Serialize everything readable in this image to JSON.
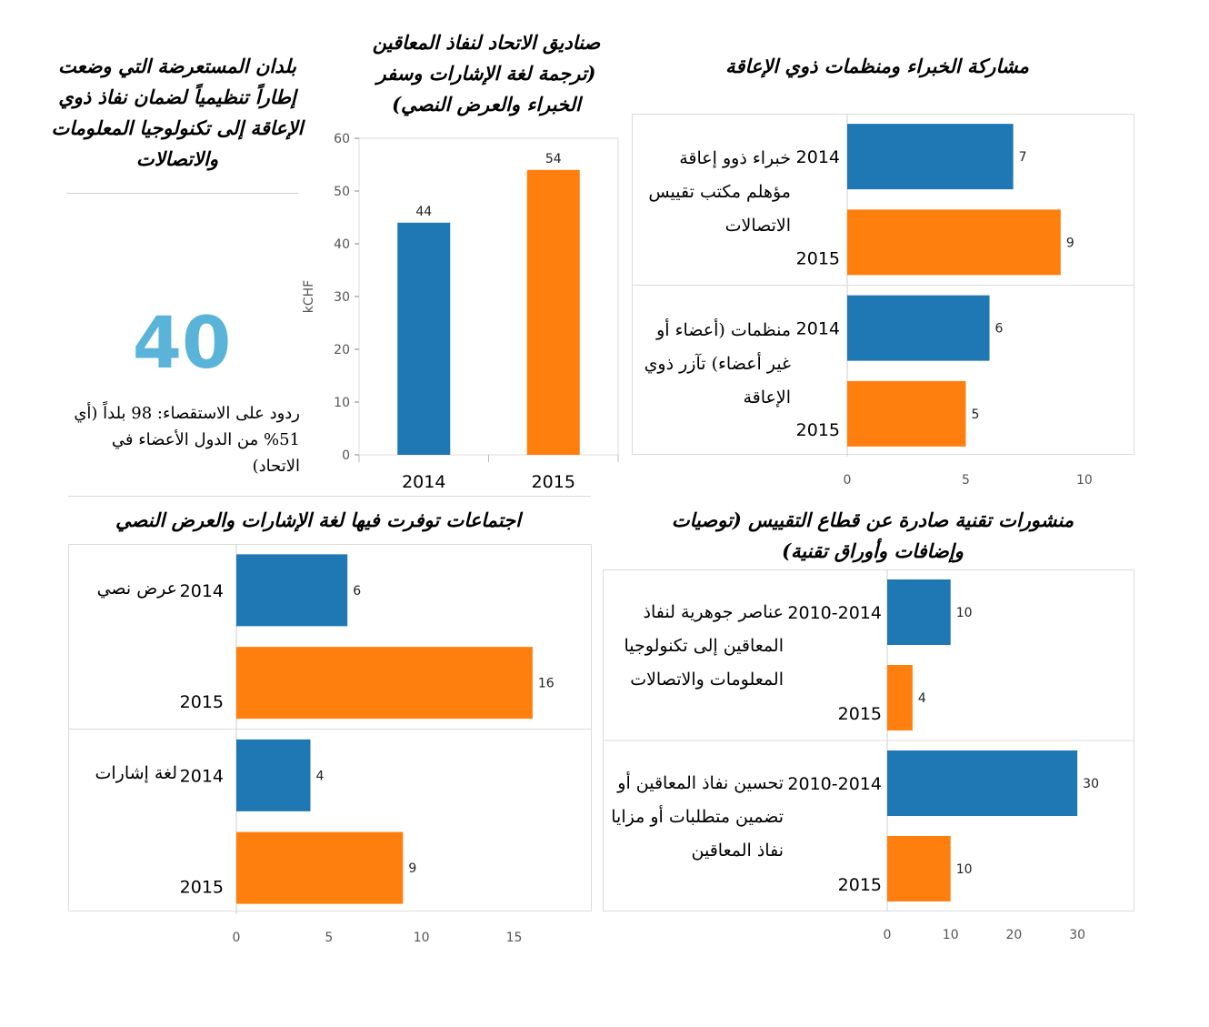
{
  "colors": {
    "y2014": "#1f77b4",
    "y2015": "#ff7f0e",
    "highlight": "#5ab4d9"
  },
  "kpi": {
    "title": "بلدان المستعرضة التي وضعت إطاراً تنظيمياً لضمان نفاذ ذوي الإعاقة إلى تكنولوجيا المعلومات والاتصالات",
    "value": "40",
    "note": "ردود على الاستقصاء: 98 بلداً (أي 51% من الدول الأعضاء في الاتحاد)"
  },
  "chart_data": [
    {
      "id": "funds",
      "type": "bar",
      "title": "صناديق الاتحاد لنفاذ المعاقين (ترجمة لغة الإشارات وسفر الخبراء والعرض النصي)",
      "ylabel": "kCHF",
      "categories": [
        "2014",
        "2015"
      ],
      "values": [
        44,
        54
      ],
      "ylim": [
        0,
        60
      ],
      "yticks": [
        0,
        10,
        20,
        30,
        40,
        50,
        60
      ],
      "grid": false
    },
    {
      "id": "experts",
      "type": "bar",
      "orientation": "horizontal",
      "title": "مشاركة الخبراء ومنظمات ذوي الإعاقة",
      "groups": [
        {
          "label": "خبراء ذوو إعاقة مؤهلم مكتب تقييس الاتصالات",
          "bars": [
            {
              "year": "2014",
              "value": 7
            },
            {
              "year": "2015",
              "value": 9
            }
          ]
        },
        {
          "label": "منظمات (أعضاء أو غير أعضاء) تآزر ذوي الإعاقة",
          "bars": [
            {
              "year": "2014",
              "value": 6
            },
            {
              "year": "2015",
              "value": 5
            }
          ]
        }
      ],
      "xlim": [
        0,
        11
      ],
      "xticks": [
        0,
        5,
        10
      ]
    },
    {
      "id": "meetings",
      "type": "bar",
      "orientation": "horizontal",
      "title": "اجتماعات توفرت فيها لغة الإشارات والعرض النصي",
      "groups": [
        {
          "label": "عرض نصي",
          "bars": [
            {
              "year": "2014",
              "value": 6
            },
            {
              "year": "2015",
              "value": 16
            }
          ]
        },
        {
          "label": "لغة إشارات",
          "bars": [
            {
              "year": "2014",
              "value": 4
            },
            {
              "year": "2015",
              "value": 9
            }
          ]
        }
      ],
      "xlim": [
        0,
        19
      ],
      "xticks": [
        0,
        5,
        10,
        15
      ]
    },
    {
      "id": "publications",
      "type": "bar",
      "orientation": "horizontal",
      "title": "منشورات تقنية صادرة عن قطاع التقييس (توصيات وإضافات وأوراق تقنية)",
      "groups": [
        {
          "label": "عناصر جوهرية لنفاذ المعاقين إلى تكنولوجيا المعلومات والاتصالات",
          "bars": [
            {
              "year": "2010-2014",
              "value": 10
            },
            {
              "year": "2015",
              "value": 4
            }
          ]
        },
        {
          "label": "تحسين نفاذ المعاقين أو تضمين متطلبات أو مزايا نفاذ المعاقين",
          "bars": [
            {
              "year": "2010-2014",
              "value": 30
            },
            {
              "year": "2015",
              "value": 10
            }
          ]
        }
      ],
      "xlim": [
        0,
        36
      ],
      "xticks": [
        0,
        10,
        20,
        30
      ]
    }
  ]
}
